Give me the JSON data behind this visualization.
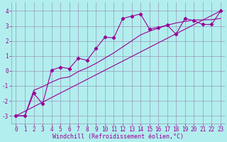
{
  "bg_color": "#b2eeee",
  "grid_color": "#9999bb",
  "line_color": "#990099",
  "marker_color": "#990099",
  "xlabel": "Windchill (Refroidissement éolien,°C)",
  "xlim": [
    -0.5,
    23.5
  ],
  "ylim": [
    -3.5,
    4.6
  ],
  "yticks": [
    -3,
    -2,
    -1,
    0,
    1,
    2,
    3,
    4
  ],
  "xticks": [
    0,
    1,
    2,
    3,
    4,
    5,
    6,
    7,
    8,
    9,
    10,
    11,
    12,
    13,
    14,
    15,
    16,
    17,
    18,
    19,
    20,
    21,
    22,
    23
  ],
  "series1_x": [
    0,
    1,
    2,
    3,
    4,
    5,
    6,
    7,
    8,
    9,
    10,
    11,
    12,
    13,
    14,
    15,
    16,
    17,
    18,
    19,
    20,
    21,
    22,
    23
  ],
  "series1_y": [
    -3.0,
    -3.0,
    -1.5,
    -2.2,
    0.05,
    0.25,
    0.15,
    0.85,
    0.7,
    1.5,
    2.25,
    2.2,
    3.5,
    3.65,
    3.8,
    2.8,
    2.9,
    3.05,
    2.45,
    3.5,
    3.35,
    3.1,
    3.1,
    4.0
  ],
  "series2_x": [
    0,
    1,
    2,
    3,
    4,
    5,
    6,
    7,
    8,
    9,
    10,
    11,
    12,
    13,
    14,
    15,
    16,
    17,
    18,
    19,
    20,
    21,
    22,
    23
  ],
  "series2_y": [
    -3.0,
    -3.0,
    -1.3,
    -1.05,
    -0.75,
    -0.5,
    -0.4,
    -0.05,
    0.2,
    0.5,
    0.85,
    1.2,
    1.6,
    2.0,
    2.4,
    2.65,
    2.85,
    3.05,
    3.2,
    3.3,
    3.4,
    3.4,
    3.42,
    3.5
  ],
  "series3_x": [
    0,
    23
  ],
  "series3_y": [
    -3.0,
    4.0
  ],
  "tick_fontsize": 5.5,
  "xlabel_fontsize": 6.0,
  "lw": 0.8,
  "ms": 2.2
}
